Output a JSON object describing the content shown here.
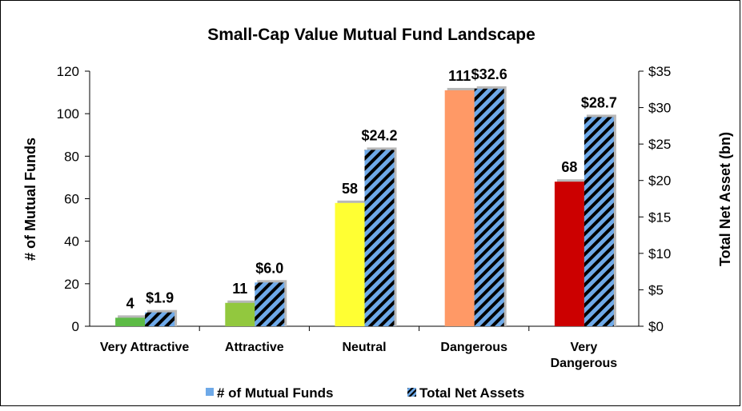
{
  "chart_data": {
    "type": "bar",
    "title": "Small-Cap Value Mutual Fund Landscape",
    "categories": [
      "Very Attractive",
      "Attractive",
      "Neutral",
      "Dangerous",
      "Very Dangerous"
    ],
    "category_lines": [
      [
        "Very Attractive"
      ],
      [
        "Attractive"
      ],
      [
        "Neutral"
      ],
      [
        "Dangerous"
      ],
      [
        "Very",
        "Dangerous"
      ]
    ],
    "series": [
      {
        "name": "# of Mutual Funds",
        "axis": "left",
        "values": [
          4,
          11,
          58,
          111,
          68
        ],
        "labels": [
          "4",
          "11",
          "58",
          "111",
          "68"
        ],
        "colors": [
          "#5dbb46",
          "#92c83e",
          "#ffff33",
          "#ff9966",
          "#cc0000"
        ],
        "legend_color": "#6ea9e8"
      },
      {
        "name": "Total Net Assets",
        "axis": "right",
        "values": [
          1.9,
          6.0,
          24.2,
          32.6,
          28.7
        ],
        "labels": [
          "$1.9",
          "$6.0",
          "$24.2",
          "$32.6",
          "$28.7"
        ],
        "pattern": "diagonal-stripes",
        "stripe_colors": [
          "#6ea9e8",
          "#000000"
        ]
      }
    ],
    "ylabel": "# of Mutual Funds",
    "ylim": [
      0,
      120
    ],
    "yticks": [
      "0",
      "20",
      "40",
      "60",
      "80",
      "100",
      "120"
    ],
    "y2label": "Total Net Asset (bn)",
    "y2lim": [
      0,
      35
    ],
    "y2ticks": [
      "$0",
      "$5",
      "$10",
      "$15",
      "$20",
      "$25",
      "$30",
      "$35"
    ],
    "legend_position": "bottom",
    "grid": false
  }
}
